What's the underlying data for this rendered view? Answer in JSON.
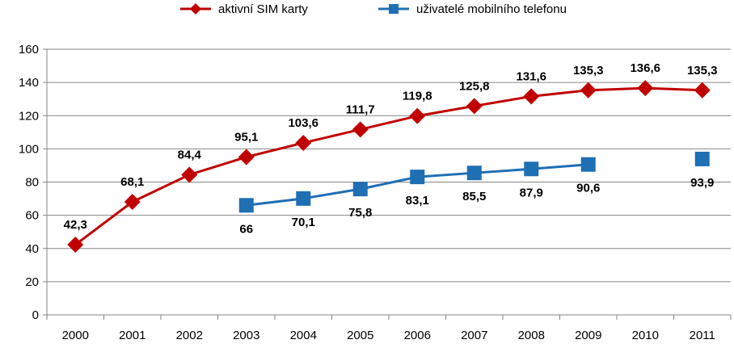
{
  "chart_data": {
    "type": "line",
    "x": [
      "2000",
      "2001",
      "2002",
      "2003",
      "2004",
      "2005",
      "2006",
      "2007",
      "2008",
      "2009",
      "2010",
      "2011"
    ],
    "ylim": [
      0,
      160
    ],
    "yticks": [
      0,
      20,
      40,
      60,
      80,
      100,
      120,
      140,
      160
    ],
    "grid": true,
    "legend_position": "top",
    "series": [
      {
        "name": "aktivní SIM karty",
        "color": "#C00000",
        "marker": "diamond",
        "values": [
          42.3,
          68.1,
          84.4,
          95.1,
          103.6,
          111.7,
          119.8,
          125.8,
          131.6,
          135.3,
          136.6,
          135.3
        ],
        "labels": [
          "42,3",
          "68,1",
          "84,4",
          "95,1",
          "103,6",
          "111,7",
          "119,8",
          "125,8",
          "131,6",
          "135,3",
          "136,6",
          "135,3"
        ]
      },
      {
        "name": "uživatelé mobilního telefonu",
        "color": "#1F6FB4",
        "marker": "square",
        "values": [
          null,
          null,
          null,
          66,
          70.1,
          75.8,
          83.1,
          85.5,
          87.9,
          90.6,
          null,
          93.9
        ],
        "labels": [
          null,
          null,
          null,
          "66",
          "70,1",
          "75,8",
          "83,1",
          "85,5",
          "87,9",
          "90,6",
          null,
          "93,9"
        ]
      }
    ]
  }
}
